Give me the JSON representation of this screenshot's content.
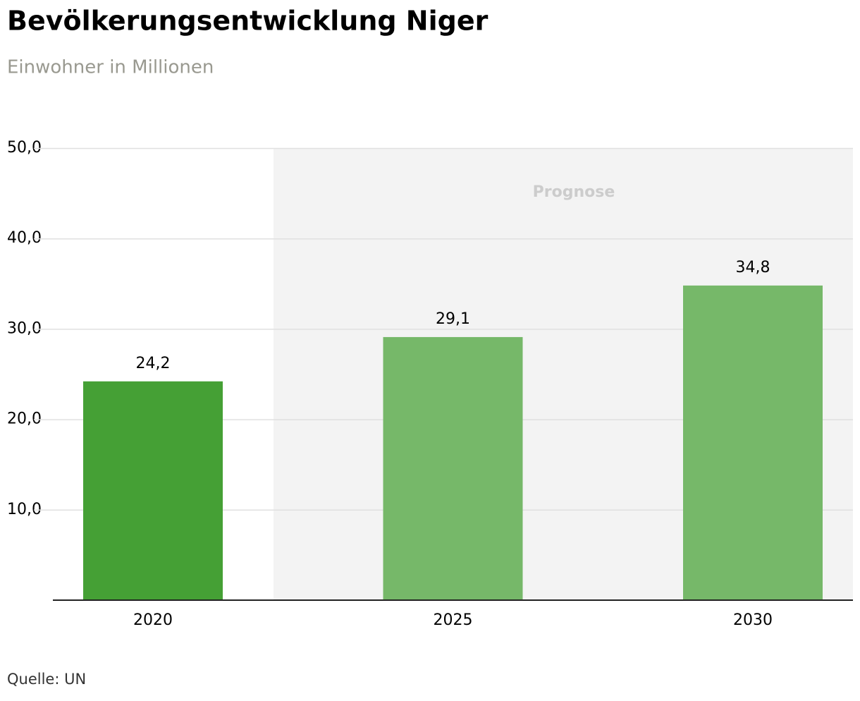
{
  "chart_data": {
    "type": "bar",
    "title": "Bevölkerungsentwicklung Niger",
    "subtitle": "Einwohner in Millionen",
    "categories": [
      "2020",
      "2025",
      "2030"
    ],
    "values": [
      24.2,
      29.1,
      34.8
    ],
    "value_labels": [
      "24,2",
      "29,1",
      "34,8"
    ],
    "colors": [
      "#45a035",
      "#76b869",
      "#76b869"
    ],
    "ylim": [
      0,
      50
    ],
    "yticks": [
      {
        "value": 10,
        "label": "10,0"
      },
      {
        "value": 20,
        "label": "20,0"
      },
      {
        "value": 30,
        "label": "30,0"
      },
      {
        "value": 40,
        "label": "40,0"
      },
      {
        "value": 50,
        "label": "50,0"
      }
    ],
    "grid": true,
    "annotation": "Prognose",
    "source": "Quelle: UN"
  }
}
